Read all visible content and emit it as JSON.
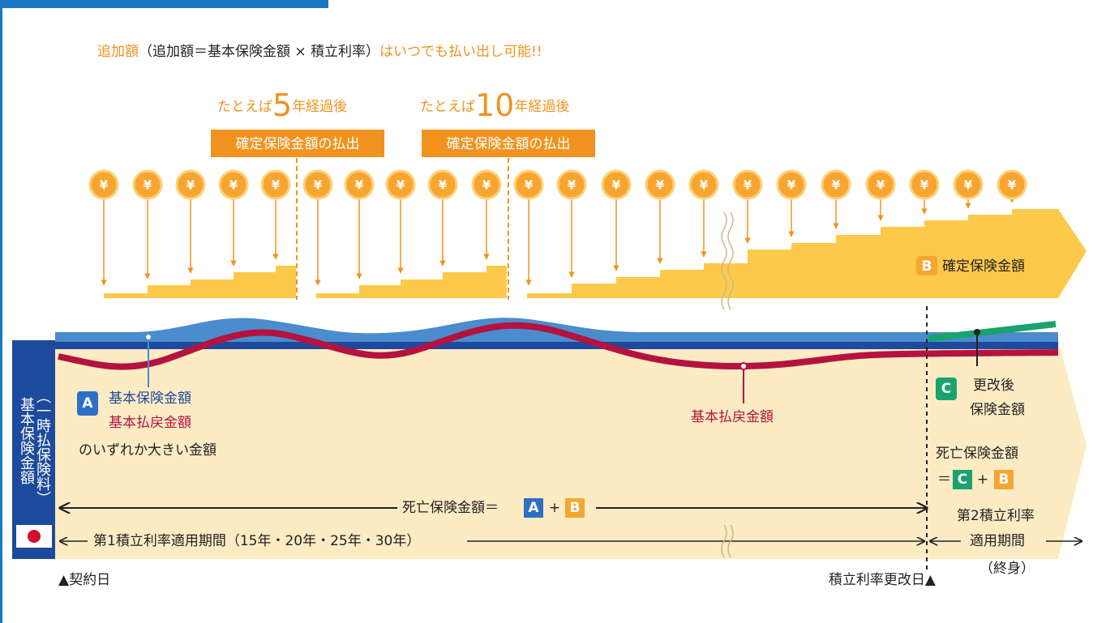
{
  "header": {
    "lead": "追加額",
    "formula": "（追加額＝基本保険金額 × 積立利率）",
    "tail": "はいつでも払い出し可能!!"
  },
  "examples": [
    {
      "prefix": "たとえば",
      "years": "5",
      "suffix": "年経過後",
      "badge": "確定保険金額の払出"
    },
    {
      "prefix": "たとえば",
      "years": "10",
      "suffix": "年経過後",
      "badge": "確定保険金額の払出"
    }
  ],
  "coin_symbol": "¥",
  "fixed_amount": {
    "letter": "B",
    "label": "確定保険金額"
  },
  "left_box": {
    "line1": "基本保険金額",
    "line2": "（一時払保険料）"
  },
  "basic": {
    "letter": "A",
    "line1": "基本保険金額",
    "line2": "基本払戻金額",
    "line3": "のいずれか大きい金額"
  },
  "refund_label": "基本払戻金額",
  "renewed": {
    "letter": "C",
    "line1": "更改後",
    "line2": "保険金額"
  },
  "death_right": {
    "title": "死亡保険金額",
    "eq": "＝",
    "c": "C",
    "plus": "+",
    "b": "B"
  },
  "death_main": {
    "label": "死亡保険金額＝",
    "a": "A",
    "plus": "+",
    "b": "B"
  },
  "period1": "第1積立利率適用期間（15年・20年・25年・30年）",
  "period2": {
    "line1": "第2積立利率",
    "line2": "適用期間",
    "line3": "（終身）"
  },
  "start": "▲契約日",
  "renewal_date": "積立利率更改日▲"
}
